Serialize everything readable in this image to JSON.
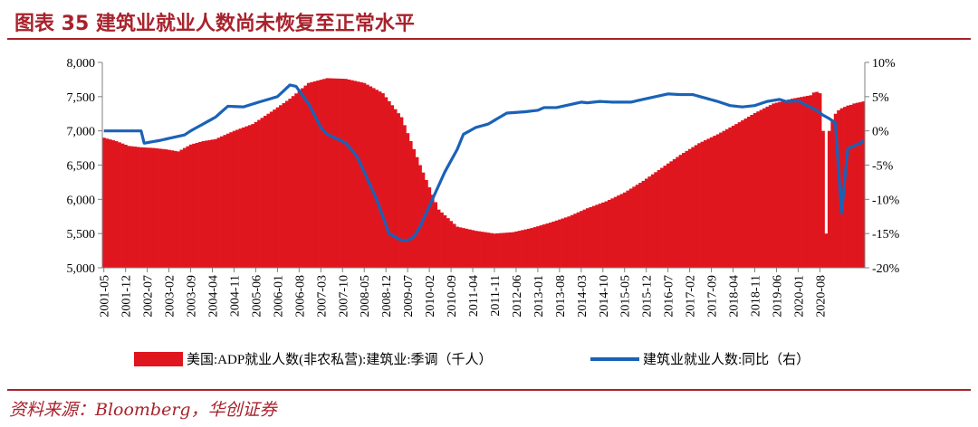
{
  "header": {
    "title": "图表 35   建筑业就业人数尚未恢复至正常水平"
  },
  "source": "资料来源：Bloomberg，华创证券",
  "colors": {
    "bar": "#e0161f",
    "line": "#1a62b7",
    "accent": "#a8222c"
  },
  "chart_data": {
    "type": "bar+line",
    "title": "建筑业就业人数尚未恢复至正常水平",
    "x_tick_labels": [
      "2001-05",
      "2001-12",
      "2002-07",
      "2003-02",
      "2003-09",
      "2004-04",
      "2004-11",
      "2005-06",
      "2006-01",
      "2006-08",
      "2007-03",
      "2007-10",
      "2008-05",
      "2008-12",
      "2009-07",
      "2010-02",
      "2010-09",
      "2011-04",
      "2011-11",
      "2012-06",
      "2013-01",
      "2013-08",
      "2014-03",
      "2014-10",
      "2015-05",
      "2015-12",
      "2016-07",
      "2017-02",
      "2017-09",
      "2018-04",
      "2018-11",
      "2019-06",
      "2020-01",
      "2020-08"
    ],
    "y_left": {
      "min": 5000,
      "max": 8000,
      "ticks": [
        "5,000",
        "5,500",
        "6,000",
        "6,500",
        "7,000",
        "7,500",
        "8,000"
      ]
    },
    "y_right": {
      "min": -20,
      "max": 10,
      "ticks": [
        "-20%",
        "-15%",
        "-10%",
        "-5%",
        "0%",
        "5%",
        "10%"
      ]
    },
    "series": [
      {
        "name": "美国:ADP就业人数(非农私营):建筑业:季调（千人）",
        "type": "bar",
        "axis": "left",
        "anchors_month_index": [
          0,
          4,
          8,
          12,
          16,
          20,
          24,
          28,
          32,
          36,
          42,
          48,
          54,
          60,
          66,
          72,
          78,
          84,
          90,
          96,
          102,
          108,
          114,
          120,
          126,
          132,
          138,
          144,
          150,
          156,
          162,
          168,
          174,
          180,
          186,
          192,
          198,
          204,
          210,
          216,
          222,
          228
        ],
        "anchors_value": [
          6900,
          6850,
          6780,
          6760,
          6750,
          6730,
          6700,
          6800,
          6850,
          6880,
          7000,
          7100,
          7280,
          7470,
          7700,
          7770,
          7760,
          7700,
          7550,
          7200,
          6500,
          5850,
          5600,
          5540,
          5500,
          5520,
          5580,
          5660,
          5750,
          5870,
          5970,
          6100,
          6270,
          6460,
          6650,
          6820,
          6950,
          7100,
          7260,
          7400,
          7470,
          7520
        ],
        "tail_month_index": [
          229,
          230,
          231,
          232,
          233,
          234,
          235,
          236,
          237,
          238,
          239,
          240,
          241,
          242,
          243,
          244,
          245
        ],
        "tail_value": [
          7560,
          7570,
          7550,
          7000,
          5500,
          7000,
          7150,
          7250,
          7300,
          7330,
          7350,
          7370,
          7380,
          7400,
          7410,
          7420,
          7430
        ]
      },
      {
        "name": "建筑业就业人数:同比（右）",
        "type": "line",
        "axis": "right",
        "anchors_month_index": [
          0,
          12,
          13,
          18,
          20,
          22,
          26,
          28,
          32,
          36,
          40,
          45,
          50,
          56,
          60,
          62,
          66,
          70,
          72,
          76,
          78,
          80,
          82,
          84,
          88,
          92,
          96,
          98,
          100,
          102,
          106,
          108,
          110,
          114,
          116,
          120,
          124,
          130,
          136,
          140,
          142,
          146,
          150,
          154,
          156,
          160,
          164,
          170,
          174,
          178,
          182,
          186,
          190,
          194,
          198,
          202,
          206,
          210,
          214,
          218,
          220,
          224,
          226,
          230,
          232,
          234,
          236,
          238,
          240,
          244,
          245
        ],
        "anchors_value": [
          0,
          0,
          -1.8,
          -1.4,
          -1.2,
          -1.0,
          -0.6,
          0,
          1,
          2,
          3.6,
          3.5,
          4.2,
          5,
          6.7,
          6.5,
          4,
          0.5,
          -0.5,
          -1.3,
          -1.8,
          -2.8,
          -4,
          -6,
          -10,
          -15,
          -16,
          -16,
          -15.5,
          -14,
          -10,
          -8,
          -6,
          -2.7,
          -0.5,
          0.5,
          1,
          2.6,
          2.8,
          3,
          3.4,
          3.4,
          3.8,
          4.2,
          4.1,
          4.3,
          4.2,
          4.2,
          4.6,
          5,
          5.4,
          5.3,
          5.3,
          4.8,
          4.3,
          3.7,
          3.5,
          3.7,
          4.3,
          4.6,
          4.3,
          4.4,
          3.9,
          3.0,
          2.3,
          1.8,
          1.2,
          -12,
          -2.6,
          -1.8,
          -1.4
        ]
      }
    ],
    "legend": {
      "position": "bottom"
    },
    "grid": false
  }
}
